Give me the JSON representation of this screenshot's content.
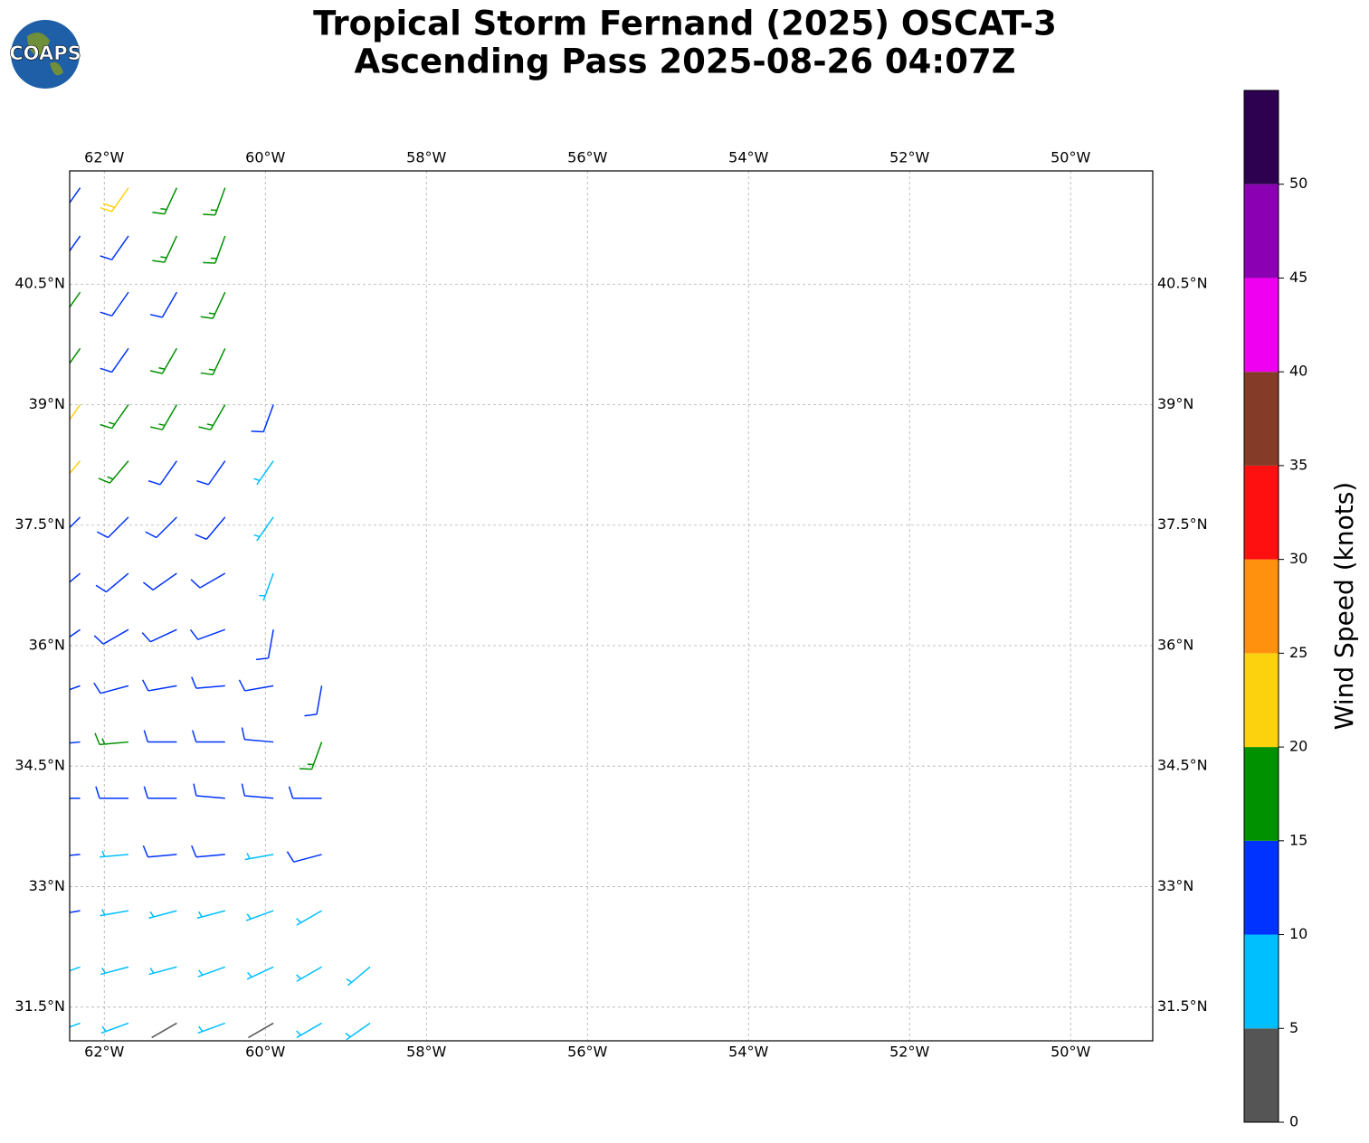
{
  "logo": "COAPS",
  "chart_data": {
    "type": "barbs",
    "title": "Tropical Storm Fernand (2025) OSCAT-3",
    "subtitle": "Ascending Pass 2025-08-26 04:07Z",
    "xlim": [
      -62.43,
      -48.98
    ],
    "ylim": [
      31.08,
      41.91
    ],
    "xticks": [
      {
        "value": -62,
        "label": "62°W"
      },
      {
        "value": -60,
        "label": "60°W"
      },
      {
        "value": -58,
        "label": "58°W"
      },
      {
        "value": -56,
        "label": "56°W"
      },
      {
        "value": -54,
        "label": "54°W"
      },
      {
        "value": -52,
        "label": "52°W"
      },
      {
        "value": -50,
        "label": "50°W"
      }
    ],
    "yticks": [
      {
        "value": 31.5,
        "label": "31.5°N"
      },
      {
        "value": 33,
        "label": "33°N"
      },
      {
        "value": 34.5,
        "label": "34.5°N"
      },
      {
        "value": 36,
        "label": "36°N"
      },
      {
        "value": 37.5,
        "label": "37.5°N"
      },
      {
        "value": 39,
        "label": "39°N"
      },
      {
        "value": 40.5,
        "label": "40.5°N"
      }
    ],
    "grid": true,
    "rows": [
      {
        "lat": 31.3,
        "lon": [
          -62.3,
          -61.7,
          -61.1,
          -60.5,
          -59.9,
          -59.3,
          -58.7
        ],
        "speed": [
          7,
          8,
          4,
          7,
          4,
          8,
          8
        ],
        "direction": [
          250,
          250,
          240,
          250,
          240,
          240,
          235
        ]
      },
      {
        "lat": 32.0,
        "lon": [
          -62.3,
          -61.7,
          -61.1,
          -60.5,
          -59.9,
          -59.3,
          -58.7
        ],
        "speed": [
          8,
          9,
          8,
          8,
          9,
          8,
          8
        ],
        "direction": [
          250,
          255,
          255,
          250,
          245,
          240,
          230
        ]
      },
      {
        "lat": 32.7,
        "lon": [
          -62.3,
          -61.7,
          -61.1,
          -60.5,
          -59.9,
          -59.3
        ],
        "speed": [
          11,
          8,
          9,
          8,
          9,
          8
        ],
        "direction": [
          260,
          260,
          255,
          255,
          250,
          240
        ]
      },
      {
        "lat": 33.4,
        "lon": [
          -62.3,
          -61.7,
          -61.1,
          -60.5,
          -59.9,
          -59.3
        ],
        "speed": [
          11,
          8,
          12,
          12,
          9,
          12
        ],
        "direction": [
          265,
          265,
          265,
          265,
          260,
          255
        ]
      },
      {
        "lat": 34.1,
        "lon": [
          -62.3,
          -61.7,
          -61.1,
          -60.5,
          -59.9,
          -59.3
        ],
        "speed": [
          12,
          12,
          13,
          13,
          13,
          12
        ],
        "direction": [
          270,
          270,
          270,
          275,
          275,
          270
        ]
      },
      {
        "lat": 34.8,
        "lon": [
          -62.3,
          -61.7,
          -61.1,
          -60.5,
          -59.9,
          -59.3
        ],
        "speed": [
          13,
          16,
          13,
          13,
          12,
          16
        ],
        "direction": [
          265,
          265,
          270,
          270,
          275,
          200
        ]
      },
      {
        "lat": 35.5,
        "lon": [
          -62.3,
          -61.7,
          -61.1,
          -60.5,
          -59.9,
          -59.3
        ],
        "speed": [
          13,
          13,
          13,
          13,
          12,
          13
        ],
        "direction": [
          250,
          255,
          260,
          265,
          260,
          190
        ]
      },
      {
        "lat": 36.2,
        "lon": [
          -62.3,
          -61.7,
          -61.1,
          -60.5,
          -59.9
        ],
        "speed": [
          13,
          12,
          12,
          11,
          13
        ],
        "direction": [
          235,
          240,
          245,
          250,
          190
        ]
      },
      {
        "lat": 36.9,
        "lon": [
          -62.3,
          -61.7,
          -61.1,
          -60.5,
          -59.9
        ],
        "speed": [
          13,
          13,
          12,
          12,
          8
        ],
        "direction": [
          230,
          230,
          235,
          240,
          200
        ]
      },
      {
        "lat": 37.6,
        "lon": [
          -62.3,
          -61.7,
          -61.1,
          -60.5,
          -59.9
        ],
        "speed": [
          12,
          13,
          12,
          13,
          8
        ],
        "direction": [
          225,
          225,
          225,
          220,
          215
        ]
      },
      {
        "lat": 38.3,
        "lon": [
          -62.3,
          -61.7,
          -61.1,
          -60.5,
          -59.9
        ],
        "speed": [
          22,
          17,
          13,
          12,
          8
        ],
        "direction": [
          220,
          220,
          215,
          215,
          215
        ]
      },
      {
        "lat": 39.0,
        "lon": [
          -62.3,
          -61.7,
          -61.1,
          -60.5,
          -59.9
        ],
        "speed": [
          22,
          17,
          17,
          17,
          12
        ],
        "direction": [
          215,
          215,
          210,
          210,
          200
        ]
      },
      {
        "lat": 39.7,
        "lon": [
          -62.3,
          -61.7,
          -61.1,
          -60.5
        ],
        "speed": [
          17,
          13,
          16,
          17
        ],
        "direction": [
          215,
          215,
          210,
          205
        ]
      },
      {
        "lat": 40.4,
        "lon": [
          -62.3,
          -61.7,
          -61.1,
          -60.5
        ],
        "speed": [
          17,
          12,
          13,
          16
        ],
        "direction": [
          215,
          215,
          210,
          205
        ]
      },
      {
        "lat": 41.1,
        "lon": [
          -62.3,
          -61.7,
          -61.1,
          -60.5
        ],
        "speed": [
          13,
          13,
          17,
          16
        ],
        "direction": [
          215,
          215,
          205,
          200
        ]
      },
      {
        "lat": 41.7,
        "lon": [
          -62.3,
          -61.7,
          -61.1,
          -60.5
        ],
        "speed": [
          13,
          22,
          17,
          16
        ],
        "direction": [
          215,
          215,
          205,
          200
        ]
      }
    ],
    "colorbar": {
      "label": "Wind Speed (knots)",
      "bounds": [
        0,
        5,
        10,
        15,
        20,
        25,
        30,
        35,
        40,
        45,
        50,
        55
      ],
      "colors": [
        "#555555",
        "#00bfff",
        "#0033ff",
        "#009100",
        "#fcd20f",
        "#ff910f",
        "#ff1010",
        "#843c28",
        "#f000f0",
        "#8c00b4",
        "#2d0050"
      ],
      "ylim": [
        0,
        55
      ],
      "yticks": [
        0,
        5,
        10,
        15,
        20,
        25,
        30,
        35,
        40,
        45,
        50
      ]
    }
  }
}
